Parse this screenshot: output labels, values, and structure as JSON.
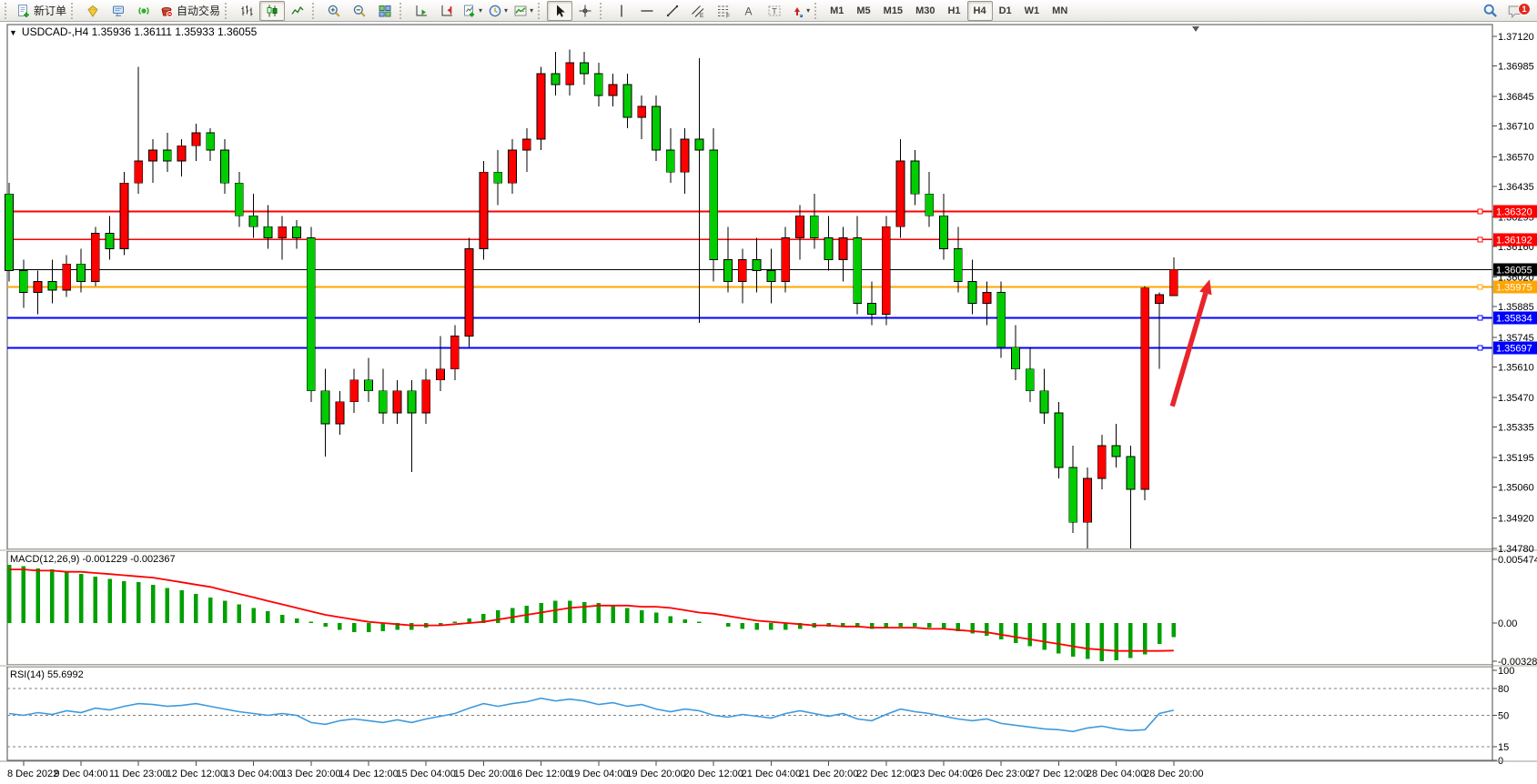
{
  "toolbar": {
    "new_order": "新订单",
    "autotrading": "自动交易",
    "timeframes": [
      {
        "label": "M1",
        "active": false
      },
      {
        "label": "M5",
        "active": false
      },
      {
        "label": "M15",
        "active": false
      },
      {
        "label": "M30",
        "active": false
      },
      {
        "label": "H1",
        "active": false
      },
      {
        "label": "H4",
        "active": true
      },
      {
        "label": "D1",
        "active": false
      },
      {
        "label": "W1",
        "active": false
      },
      {
        "label": "MN",
        "active": false
      }
    ],
    "notification_count": "1"
  },
  "chart": {
    "title_text": "USDCAD-,H4  1.35936 1.36111 1.35933 1.36055"
  },
  "chart_data": [
    {
      "type": "candlestick",
      "symbol": "USDCAD-",
      "timeframe": "H4",
      "ohlc": {
        "open": 1.35936,
        "high": 1.36111,
        "low": 1.35933,
        "close": 1.36055
      },
      "up_color": "#ff0000",
      "down_color": "#00cc00",
      "ylim": [
        1.34776,
        1.37174
      ],
      "price_ticks": [
        "1.37120",
        "1.36985",
        "1.36845",
        "1.36710",
        "1.36570",
        "1.36435",
        "1.36295",
        "1.36160",
        "1.36020",
        "1.35885",
        "1.35745",
        "1.35610",
        "1.35470",
        "1.35335",
        "1.35195",
        "1.35060",
        "1.34920",
        "1.34780"
      ],
      "x_tick_labels": [
        "8 Dec 2022",
        "9 Dec 04:00",
        "11 Dec 23:00",
        "12 Dec 12:00",
        "13 Dec 04:00",
        "13 Dec 20:00",
        "14 Dec 12:00",
        "15 Dec 04:00",
        "15 Dec 20:00",
        "16 Dec 12:00",
        "19 Dec 04:00",
        "19 Dec 20:00",
        "20 Dec 12:00",
        "21 Dec 04:00",
        "21 Dec 20:00",
        "22 Dec 12:00",
        "23 Dec 04:00",
        "26 Dec 23:00",
        "27 Dec 12:00",
        "28 Dec 04:00",
        "28 Dec 20:00"
      ],
      "hlines": [
        {
          "price": 1.3632,
          "label": "1.36320",
          "color": "#ff0000",
          "width": 1.6
        },
        {
          "price": 1.36192,
          "label": "1.36192",
          "color": "#ff0000",
          "width": 1.6
        },
        {
          "price": 1.35975,
          "label": "1.35975",
          "color": "#ffa500",
          "width": 2.2
        },
        {
          "price": 1.35834,
          "label": "1.35834",
          "color": "#0000ff",
          "width": 2.0
        },
        {
          "price": 1.35697,
          "label": "1.35697",
          "color": "#0000ff",
          "width": 2.0
        }
      ],
      "bid": {
        "price": 1.36055,
        "label": "1.36055",
        "color": "#000000"
      },
      "arrow": {
        "from_bar": 80.9,
        "from_price": 1.3543,
        "to_bar": 83.5,
        "to_price": 1.3601,
        "color": "#e8252a"
      },
      "candles": [
        [
          1.364,
          1.3645,
          1.36,
          1.3605
        ],
        [
          1.3605,
          1.361,
          1.3588,
          1.3595
        ],
        [
          1.3595,
          1.3605,
          1.3585,
          1.36
        ],
        [
          1.36,
          1.361,
          1.359,
          1.3596
        ],
        [
          1.3596,
          1.3612,
          1.3593,
          1.3608
        ],
        [
          1.3608,
          1.3615,
          1.3595,
          1.36
        ],
        [
          1.36,
          1.3625,
          1.3598,
          1.3622
        ],
        [
          1.3622,
          1.363,
          1.361,
          1.3615
        ],
        [
          1.3615,
          1.365,
          1.3612,
          1.3645
        ],
        [
          1.3645,
          1.3698,
          1.364,
          1.3655
        ],
        [
          1.3655,
          1.3665,
          1.3645,
          1.366
        ],
        [
          1.366,
          1.3668,
          1.365,
          1.3655
        ],
        [
          1.3655,
          1.3665,
          1.3648,
          1.3662
        ],
        [
          1.3662,
          1.3672,
          1.3655,
          1.3668
        ],
        [
          1.3668,
          1.367,
          1.3655,
          1.366
        ],
        [
          1.366,
          1.3665,
          1.364,
          1.3645
        ],
        [
          1.3645,
          1.365,
          1.3625,
          1.363
        ],
        [
          1.363,
          1.364,
          1.362,
          1.3625
        ],
        [
          1.3625,
          1.3635,
          1.3615,
          1.362
        ],
        [
          1.362,
          1.363,
          1.361,
          1.3625
        ],
        [
          1.3625,
          1.3628,
          1.3615,
          1.362
        ],
        [
          1.362,
          1.3625,
          1.3545,
          1.355
        ],
        [
          1.355,
          1.356,
          1.352,
          1.3535
        ],
        [
          1.3535,
          1.355,
          1.353,
          1.3545
        ],
        [
          1.3545,
          1.356,
          1.354,
          1.3555
        ],
        [
          1.3555,
          1.3565,
          1.3545,
          1.355
        ],
        [
          1.355,
          1.356,
          1.3535,
          1.354
        ],
        [
          1.354,
          1.3555,
          1.3535,
          1.355
        ],
        [
          1.355,
          1.3555,
          1.3513,
          1.354
        ],
        [
          1.354,
          1.356,
          1.3535,
          1.3555
        ],
        [
          1.3555,
          1.3575,
          1.355,
          1.356
        ],
        [
          1.356,
          1.358,
          1.3555,
          1.3575
        ],
        [
          1.3575,
          1.362,
          1.357,
          1.3615
        ],
        [
          1.3615,
          1.3655,
          1.361,
          1.365
        ],
        [
          1.365,
          1.366,
          1.3635,
          1.3645
        ],
        [
          1.3645,
          1.3665,
          1.364,
          1.366
        ],
        [
          1.366,
          1.367,
          1.365,
          1.3665
        ],
        [
          1.3665,
          1.3698,
          1.366,
          1.3695
        ],
        [
          1.3695,
          1.3705,
          1.3685,
          1.369
        ],
        [
          1.369,
          1.3706,
          1.3685,
          1.37
        ],
        [
          1.37,
          1.3705,
          1.369,
          1.3695
        ],
        [
          1.3695,
          1.37,
          1.368,
          1.3685
        ],
        [
          1.3685,
          1.3695,
          1.368,
          1.369
        ],
        [
          1.369,
          1.3695,
          1.367,
          1.3675
        ],
        [
          1.3675,
          1.3685,
          1.3665,
          1.368
        ],
        [
          1.368,
          1.3685,
          1.3655,
          1.366
        ],
        [
          1.366,
          1.367,
          1.3645,
          1.365
        ],
        [
          1.365,
          1.367,
          1.364,
          1.3665
        ],
        [
          1.3665,
          1.3702,
          1.3581,
          1.366
        ],
        [
          1.366,
          1.367,
          1.36,
          1.361
        ],
        [
          1.361,
          1.3625,
          1.3595,
          1.36
        ],
        [
          1.36,
          1.3615,
          1.359,
          1.361
        ],
        [
          1.361,
          1.362,
          1.3595,
          1.3605
        ],
        [
          1.3605,
          1.3615,
          1.359,
          1.36
        ],
        [
          1.36,
          1.3625,
          1.3595,
          1.362
        ],
        [
          1.362,
          1.3635,
          1.361,
          1.363
        ],
        [
          1.363,
          1.364,
          1.3615,
          1.362
        ],
        [
          1.362,
          1.363,
          1.3605,
          1.361
        ],
        [
          1.361,
          1.3625,
          1.36,
          1.362
        ],
        [
          1.362,
          1.363,
          1.3585,
          1.359
        ],
        [
          1.359,
          1.36,
          1.358,
          1.3585
        ],
        [
          1.3585,
          1.363,
          1.358,
          1.3625
        ],
        [
          1.3625,
          1.3665,
          1.362,
          1.3655
        ],
        [
          1.3655,
          1.366,
          1.3635,
          1.364
        ],
        [
          1.364,
          1.365,
          1.3625,
          1.363
        ],
        [
          1.363,
          1.364,
          1.361,
          1.3615
        ],
        [
          1.3615,
          1.3625,
          1.3595,
          1.36
        ],
        [
          1.36,
          1.361,
          1.3585,
          1.359
        ],
        [
          1.359,
          1.36,
          1.358,
          1.3595
        ],
        [
          1.3595,
          1.36,
          1.3565,
          1.357
        ],
        [
          1.357,
          1.358,
          1.3555,
          1.356
        ],
        [
          1.356,
          1.357,
          1.3545,
          1.355
        ],
        [
          1.355,
          1.356,
          1.3535,
          1.354
        ],
        [
          1.354,
          1.3545,
          1.351,
          1.3515
        ],
        [
          1.3515,
          1.3525,
          1.3485,
          1.349
        ],
        [
          1.349,
          1.3515,
          1.3478,
          1.351
        ],
        [
          1.351,
          1.353,
          1.3505,
          1.3525
        ],
        [
          1.3525,
          1.3535,
          1.3515,
          1.352
        ],
        [
          1.352,
          1.3525,
          1.3478,
          1.3505
        ],
        [
          1.3505,
          1.3598,
          1.35,
          1.3597
        ],
        [
          1.359,
          1.3595,
          1.356,
          1.3594
        ],
        [
          1.35936,
          1.36111,
          1.35933,
          1.36055
        ]
      ]
    },
    {
      "type": "macd",
      "label": "MACD(12,26,9) -0.001229 -0.002367",
      "params": [
        12,
        26,
        9
      ],
      "value": -0.001229,
      "signal_value": -0.002367,
      "y_ticks": [
        "0.005474",
        "0.00",
        "-0.003289"
      ],
      "hist_color": "#00a000",
      "signal_color": "#ff0000",
      "histogram": [
        0.005,
        0.0049,
        0.0047,
        0.0046,
        0.0044,
        0.0042,
        0.004,
        0.0038,
        0.0036,
        0.0035,
        0.0033,
        0.003,
        0.0028,
        0.0025,
        0.0022,
        0.0019,
        0.0016,
        0.0013,
        0.001,
        0.0007,
        0.0004,
        0.0001,
        -0.0003,
        -0.0006,
        -0.0008,
        -0.0008,
        -0.0007,
        -0.0006,
        -0.0006,
        -0.0004,
        -0.0002,
        0.0001,
        0.0004,
        0.0008,
        0.0011,
        0.0013,
        0.0015,
        0.0017,
        0.0019,
        0.0019,
        0.0018,
        0.0017,
        0.0015,
        0.0013,
        0.0011,
        0.0009,
        0.0006,
        0.0003,
        0.0001,
        0.0,
        -0.0003,
        -0.0005,
        -0.0006,
        -0.0006,
        -0.0006,
        -0.0005,
        -0.0004,
        -0.0003,
        -0.0003,
        -0.0004,
        -0.0005,
        -0.0004,
        -0.0003,
        -0.0003,
        -0.0004,
        -0.0005,
        -0.0007,
        -0.0009,
        -0.0011,
        -0.0014,
        -0.0017,
        -0.002,
        -0.0023,
        -0.0026,
        -0.0029,
        -0.0031,
        -0.0033,
        -0.0032,
        -0.003,
        -0.0027,
        -0.0018,
        -0.001229
      ],
      "signal": [
        0.0046,
        0.0046,
        0.0045,
        0.0045,
        0.0044,
        0.0044,
        0.0043,
        0.0042,
        0.0041,
        0.004,
        0.0039,
        0.0037,
        0.0035,
        0.0033,
        0.0031,
        0.0028,
        0.0025,
        0.0022,
        0.0019,
        0.0016,
        0.0013,
        0.001,
        0.0007,
        0.0005,
        0.0003,
        0.0001,
        0.0,
        -0.0001,
        -0.0002,
        -0.0002,
        -0.0002,
        -0.0001,
        0.0,
        0.0001,
        0.0003,
        0.0005,
        0.0007,
        0.0009,
        0.0011,
        0.0013,
        0.0014,
        0.0015,
        0.0015,
        0.0015,
        0.0014,
        0.0014,
        0.0013,
        0.0011,
        0.0009,
        0.0008,
        0.0006,
        0.0004,
        0.0002,
        0.0001,
        0.0,
        -0.0001,
        -0.0002,
        -0.0002,
        -0.0003,
        -0.0003,
        -0.0004,
        -0.0004,
        -0.0004,
        -0.0004,
        -0.0005,
        -0.0005,
        -0.0006,
        -0.0007,
        -0.0008,
        -0.001,
        -0.0012,
        -0.0014,
        -0.0016,
        -0.0018,
        -0.002,
        -0.0022,
        -0.0023,
        -0.0024,
        -0.0024,
        -0.0024,
        -0.0024,
        -0.002367
      ]
    },
    {
      "type": "rsi",
      "label": "RSI(14) 55.6992",
      "period": 14,
      "value": 55.6992,
      "levels": [
        80,
        50,
        15
      ],
      "y_ticks": [
        "100",
        "80",
        "50",
        "15",
        "0"
      ],
      "line_color": "#3e9ade",
      "values": [
        52,
        50,
        53,
        51,
        55,
        53,
        58,
        56,
        60,
        63,
        62,
        60,
        61,
        63,
        60,
        57,
        54,
        52,
        50,
        52,
        50,
        42,
        40,
        44,
        46,
        44,
        42,
        45,
        42,
        46,
        49,
        52,
        58,
        63,
        60,
        63,
        65,
        69,
        66,
        68,
        66,
        62,
        64,
        60,
        62,
        57,
        54,
        57,
        55,
        50,
        48,
        51,
        49,
        47,
        52,
        55,
        52,
        49,
        52,
        46,
        44,
        51,
        57,
        54,
        52,
        49,
        46,
        44,
        46,
        41,
        39,
        37,
        35,
        34,
        32,
        36,
        38,
        35,
        33,
        34,
        52,
        55.6992
      ]
    }
  ]
}
